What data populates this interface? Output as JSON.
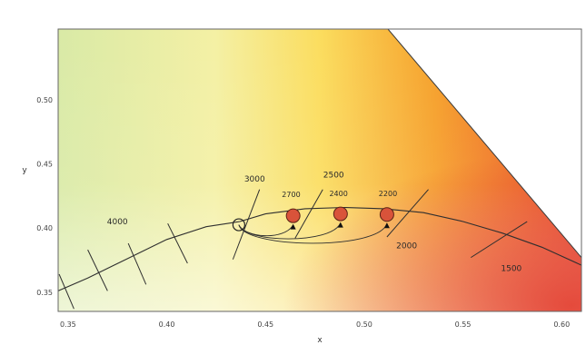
{
  "chart_data": {
    "type": "scatter",
    "title": "",
    "xlabel": "x",
    "ylabel": "y",
    "xlim": [
      0.345,
      0.61
    ],
    "ylim": [
      0.335,
      0.555
    ],
    "x_ticks": [
      {
        "value": 0.35,
        "label": "0.35"
      },
      {
        "value": 0.4,
        "label": "0.40"
      },
      {
        "value": 0.45,
        "label": "0.45"
      },
      {
        "value": 0.5,
        "label": "0.50"
      },
      {
        "value": 0.55,
        "label": "0.55"
      },
      {
        "value": 0.6,
        "label": "0.60"
      }
    ],
    "y_ticks": [
      {
        "value": 0.35,
        "label": "0.35"
      },
      {
        "value": 0.4,
        "label": "0.40"
      },
      {
        "value": 0.45,
        "label": "0.45"
      },
      {
        "value": 0.5,
        "label": "0.50"
      }
    ],
    "planckian_locus": {
      "x": [
        0.345,
        0.36,
        0.38,
        0.4,
        0.42,
        0.437,
        0.45,
        0.47,
        0.49,
        0.51,
        0.53,
        0.55,
        0.57,
        0.59,
        0.61
      ],
      "y": [
        0.351,
        0.361,
        0.376,
        0.391,
        0.401,
        0.405,
        0.411,
        0.415,
        0.416,
        0.415,
        0.412,
        0.405,
        0.396,
        0.385,
        0.371
      ]
    },
    "gamut_boundary": {
      "x": [
        0.512,
        0.61
      ],
      "y": [
        0.555,
        0.377
      ]
    },
    "isotemperature_lines": [
      {
        "cct": "4000",
        "x": [
          0.3455,
          0.353
        ],
        "y": [
          0.364,
          0.337
        ]
      },
      {
        "cct": "",
        "x": [
          0.36,
          0.37
        ],
        "y": [
          0.383,
          0.351
        ]
      },
      {
        "cct": "",
        "x": [
          0.3805,
          0.3895
        ],
        "y": [
          0.388,
          0.356
        ]
      },
      {
        "cct": "",
        "x": [
          0.4005,
          0.4105
        ],
        "y": [
          0.4035,
          0.3725
        ]
      },
      {
        "cct": "3000",
        "x": [
          0.4335,
          0.447
        ],
        "y": [
          0.3755,
          0.43
        ]
      },
      {
        "cct": "2500",
        "x": [
          0.465,
          0.479
        ],
        "y": [
          0.392,
          0.43
        ]
      },
      {
        "cct": "2000",
        "x": [
          0.5115,
          0.5325
        ],
        "y": [
          0.393,
          0.43
        ]
      },
      {
        "cct": "1500",
        "x": [
          0.554,
          0.5825
        ],
        "y": [
          0.377,
          0.405
        ]
      }
    ],
    "series": [
      {
        "name": "",
        "points": [
          {
            "label": "2700",
            "x": 0.464,
            "y": 0.4095
          },
          {
            "label": "2400",
            "x": 0.488,
            "y": 0.411
          },
          {
            "label": "2200",
            "x": 0.5115,
            "y": 0.4105
          }
        ]
      }
    ],
    "reference_point": {
      "x": 0.4365,
      "y": 0.4025
    },
    "cct_labels": [
      {
        "text": "4000",
        "x": 0.375,
        "y": 0.403
      },
      {
        "text": "3000",
        "x": 0.4445,
        "y": 0.436
      },
      {
        "text": "2500",
        "x": 0.4845,
        "y": 0.4395
      },
      {
        "text": "2700",
        "x": 0.463,
        "y": 0.424
      },
      {
        "text": "2400",
        "x": 0.487,
        "y": 0.425
      },
      {
        "text": "2200",
        "x": 0.512,
        "y": 0.425
      },
      {
        "text": "2000",
        "x": 0.5215,
        "y": 0.384
      },
      {
        "text": "1500",
        "x": 0.5745,
        "y": 0.3665
      }
    ],
    "grid": false,
    "legend": "none"
  }
}
